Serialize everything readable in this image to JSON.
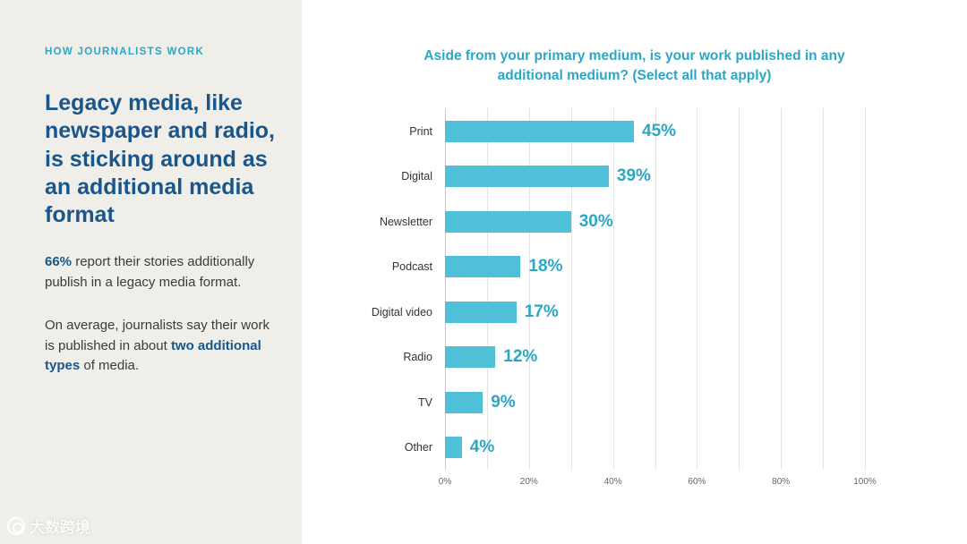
{
  "colors": {
    "accent": "#2ba7c6",
    "blue": "#19568c",
    "bar": "#4fc0d8",
    "left_bg": "#f0eee8"
  },
  "sidebar": {
    "eyebrow": "HOW JOURNALISTS WORK",
    "headline": "Legacy media, like newspaper and radio, is sticking around as an additional media format",
    "para1_highlight": "66%",
    "para1_rest": " report their stories additionally publish in a legacy media format.",
    "para2_start": "On average, journalists say their work is published in about ",
    "para2_highlight": "two additional types",
    "para2_end": " of media."
  },
  "watermark": {
    "label": "大数跨境",
    "icon": "circle-logo-icon"
  },
  "chart_data": {
    "type": "bar",
    "orientation": "horizontal",
    "title": "Aside from your primary medium, is your work published in any additional medium? (Select all that apply)",
    "categories": [
      "Print",
      "Digital",
      "Newsletter",
      "Podcast",
      "Digital video",
      "Radio",
      "TV",
      "Other"
    ],
    "values": [
      45,
      39,
      30,
      18,
      17,
      12,
      9,
      4
    ],
    "value_labels": [
      "45%",
      "39%",
      "30%",
      "18%",
      "17%",
      "12%",
      "9%",
      "4%"
    ],
    "xlabel": "",
    "ylabel": "",
    "xlim": [
      0,
      100
    ],
    "grid": true,
    "grid_step": 10,
    "x_ticks": [
      "0%",
      "20%",
      "40%",
      "60%",
      "80%",
      "100%"
    ],
    "legend": "none",
    "bar_color": "#4fc0d8",
    "value_label_color": "#2ba7c6"
  }
}
